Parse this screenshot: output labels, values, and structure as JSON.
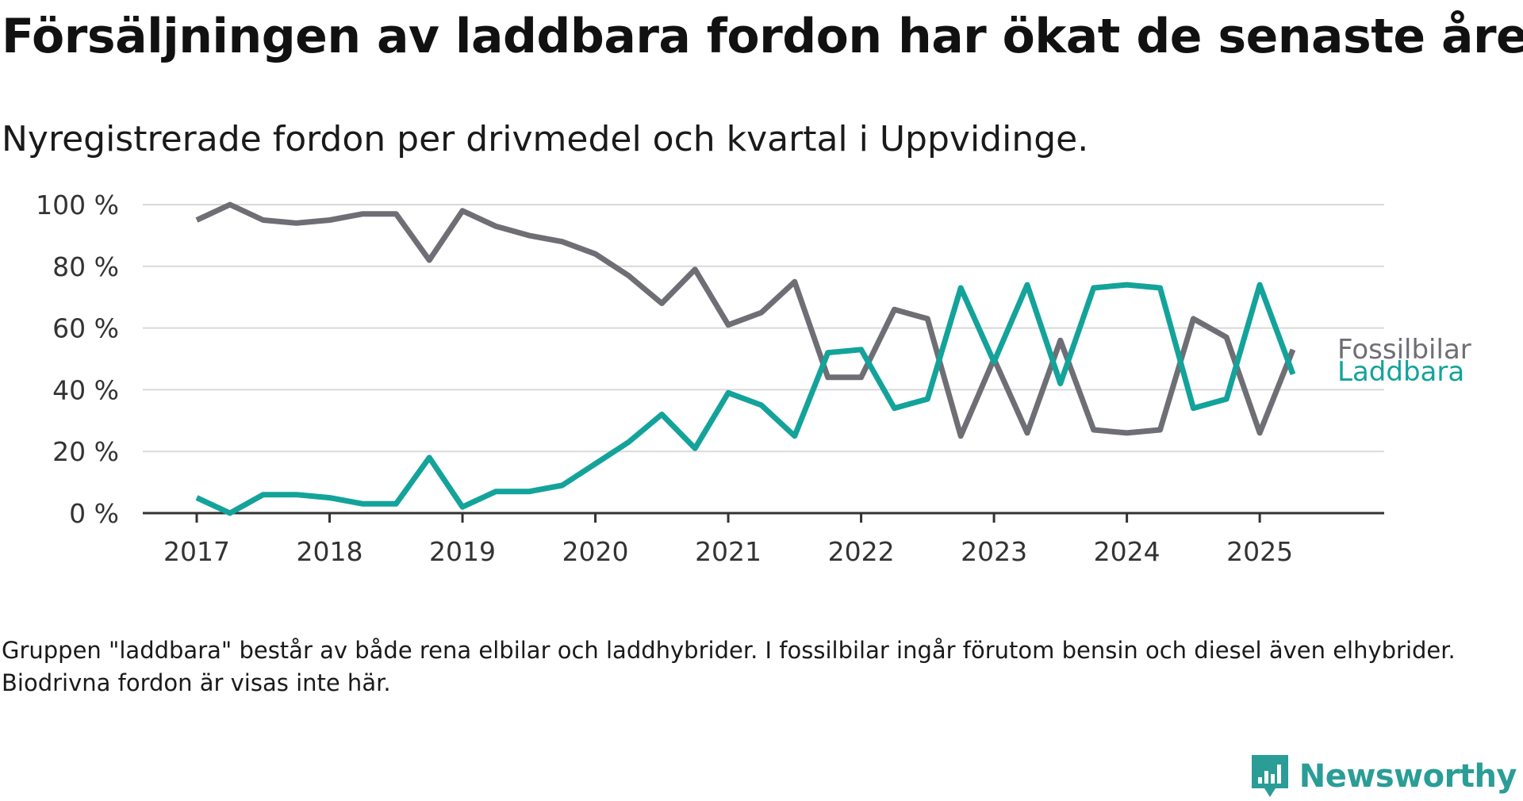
{
  "title": "Försäljningen av laddbara fordon har ökat de senaste åren",
  "subtitle": "Nyregistrerade fordon per drivmedel och kvartal i Uppvidinge.",
  "footnote": "Gruppen \"laddbara\" består av både rena elbilar och laddhybrider. I fossilbilar ingår förutom bensin och diesel även elhybrider. Biodrivna fordon är visas inte här.",
  "brand": {
    "name": "Newsworthy",
    "icon": "newsworthy-logo-icon",
    "color": "#2a9d96"
  },
  "chart_data": {
    "type": "line",
    "title": "",
    "xlabel": "",
    "ylabel": "",
    "x_start": "2017 Q1",
    "x_interval": "quarter",
    "xlim": [
      2017.0,
      2025.25
    ],
    "x_ticks": [
      2017,
      2018,
      2019,
      2020,
      2021,
      2022,
      2023,
      2024,
      2025
    ],
    "ylim": [
      0,
      100
    ],
    "y_ticks": [
      0,
      20,
      40,
      60,
      80,
      100
    ],
    "y_tick_labels": [
      "0 %",
      "20 %",
      "40 %",
      "60 %",
      "80 %",
      "100 %"
    ],
    "grid": "horizontal",
    "legend": "direct labels at right end of lines",
    "series": [
      {
        "name": "Fossilbilar",
        "color": "#6e6e75",
        "values": [
          95,
          100,
          95,
          94,
          95,
          97,
          97,
          82,
          98,
          93,
          90,
          88,
          84,
          77,
          68,
          79,
          61,
          65,
          75,
          44,
          44,
          66,
          63,
          25,
          50,
          26,
          56,
          27,
          26,
          27,
          63,
          57,
          26,
          53
        ]
      },
      {
        "name": "Laddbara",
        "color": "#13a39a",
        "values": [
          5,
          0,
          6,
          6,
          5,
          3,
          3,
          18,
          2,
          7,
          7,
          9,
          16,
          23,
          32,
          21,
          39,
          35,
          25,
          52,
          53,
          34,
          37,
          73,
          49,
          74,
          42,
          73,
          74,
          73,
          34,
          37,
          74,
          45
        ]
      }
    ]
  }
}
